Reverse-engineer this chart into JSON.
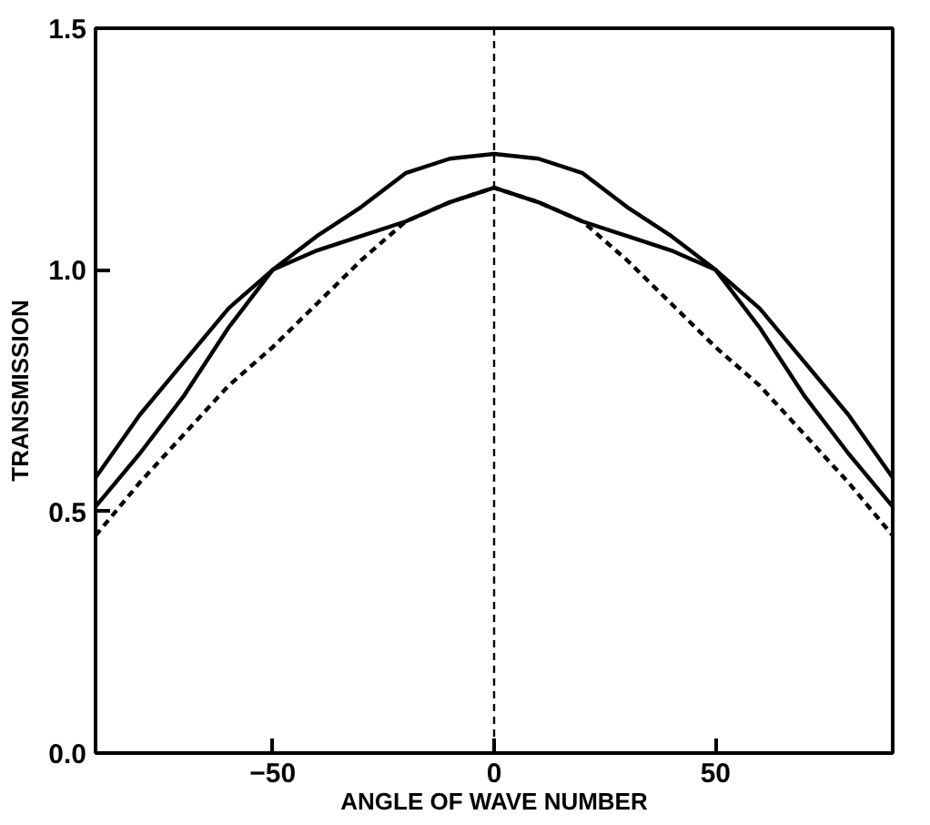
{
  "chart_data": {
    "type": "line",
    "xlabel": "ANGLE OF WAVE NUMBER",
    "ylabel": "TRANSMISSION",
    "x": [
      -90,
      -80,
      -70,
      -60,
      -50,
      -40,
      -30,
      -20,
      -10,
      0,
      10,
      20,
      30,
      40,
      50,
      60,
      70,
      80,
      90
    ],
    "series": [
      {
        "color": "#000000",
        "line_style": "solid",
        "values": [
          0.51,
          0.62,
          0.74,
          0.88,
          1.0,
          1.07,
          1.13,
          1.2,
          1.23,
          1.24,
          1.23,
          1.2,
          1.13,
          1.07,
          1.0,
          0.88,
          0.74,
          0.62,
          0.51
        ]
      },
      {
        "color": "#000000",
        "line_style": "solid",
        "values": [
          0.57,
          0.7,
          0.81,
          0.92,
          1.0,
          1.04,
          1.07,
          1.1,
          1.14,
          1.17,
          1.14,
          1.1,
          1.07,
          1.04,
          1.0,
          0.92,
          0.81,
          0.7,
          0.57
        ]
      },
      {
        "color": "#000000",
        "line_style": "dashed",
        "values": [
          0.45,
          0.56,
          0.66,
          0.76,
          0.84,
          0.93,
          1.02,
          1.1,
          1.14,
          1.17,
          1.14,
          1.1,
          1.02,
          0.93,
          0.84,
          0.76,
          0.66,
          0.56,
          0.45
        ]
      }
    ],
    "ref_lines": [
      {
        "axis": "x",
        "value": 0,
        "line_style": "dashed",
        "color": "#000000"
      }
    ],
    "xlim": [
      -90,
      90
    ],
    "ylim": [
      0,
      1.5
    ],
    "xticks": [
      -50,
      0,
      50
    ],
    "yticks": [
      {
        "value": 0,
        "label": "0.0"
      },
      {
        "value": 0.5,
        "label": "0.5"
      },
      {
        "value": 1.0,
        "label": "1.0"
      },
      {
        "value": 1.5,
        "label": "1.5"
      }
    ],
    "grid": false,
    "marker": "none"
  }
}
